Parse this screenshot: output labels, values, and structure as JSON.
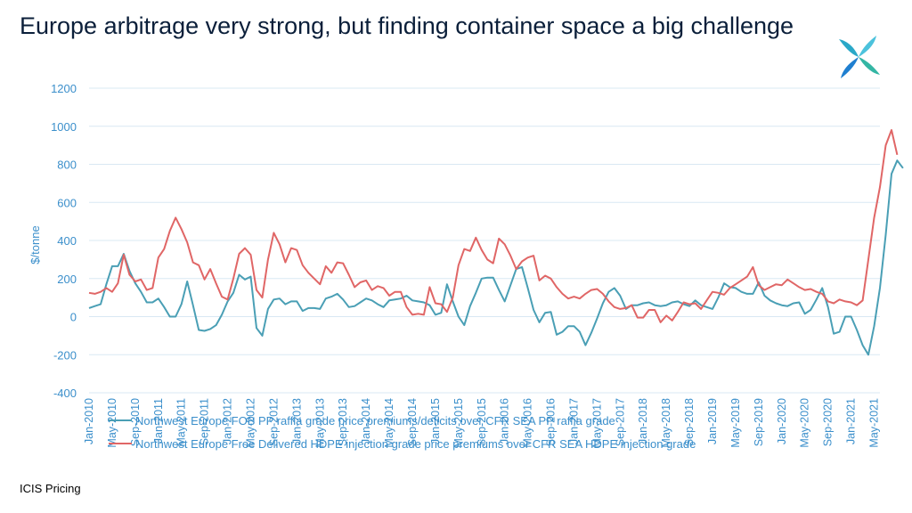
{
  "page": {
    "title": "Europe arbitrage very strong, but finding container space a big challenge",
    "source": "ICIS Pricing"
  },
  "colors": {
    "teal": "#4a9fb5",
    "red": "#e06666",
    "axis_text": "#3b8fcb",
    "grid": "#d9e8f3"
  },
  "logo_icon": "icis-pinwheel-logo",
  "chart_data": {
    "type": "line",
    "ylabel": "$/tonne",
    "ylim": [
      -400,
      1200
    ],
    "yticks": [
      -400,
      -200,
      0,
      200,
      400,
      600,
      800,
      1000,
      1200
    ],
    "grid": true,
    "legend_position": "bottom",
    "x_start": "Jan-2010",
    "x_count": 138,
    "x_tick_labels": [
      "Jan-2010",
      "May-2010",
      "Sep-2010",
      "Jan-2011",
      "May-2011",
      "Sep-2011",
      "Jan-2012",
      "May-2012",
      "Sep-2012",
      "Jan-2013",
      "May-2013",
      "Sep-2013",
      "Jan-2014",
      "May-2014",
      "Sep-2014",
      "Jan-2015",
      "May-2015",
      "Sep-2015",
      "Jan-2016",
      "May-2016",
      "Sep-2016",
      "Jan-2017",
      "May-2017",
      "Sep-2017",
      "Jan-2018",
      "May-2018",
      "Sep-2018",
      "Jan-2019",
      "May-2019",
      "Sep-2019",
      "Jan-2020",
      "May-2020",
      "Sep-2020",
      "Jan-2021",
      "May-2021"
    ],
    "series": [
      {
        "name": "Northwest Europe FOB PP raffia grade price premiums/deficits over CFR SEA PP raffia grade",
        "color": "#4a9fb5",
        "values": [
          45,
          55,
          65,
          170,
          265,
          265,
          330,
          240,
          175,
          130,
          75,
          75,
          95,
          50,
          0,
          0,
          65,
          185,
          60,
          -70,
          -75,
          -65,
          -45,
          10,
          80,
          125,
          220,
          195,
          210,
          -60,
          -100,
          40,
          90,
          95,
          65,
          80,
          80,
          30,
          45,
          45,
          40,
          95,
          105,
          120,
          90,
          50,
          55,
          75,
          95,
          85,
          65,
          50,
          85,
          90,
          95,
          110,
          85,
          80,
          75,
          60,
          10,
          20,
          170,
          80,
          0,
          -45,
          55,
          125,
          200,
          205,
          205,
          140,
          80,
          165,
          250,
          260,
          150,
          35,
          -30,
          20,
          25,
          -95,
          -80,
          -50,
          -50,
          -80,
          -150,
          -85,
          -10,
          70,
          130,
          150,
          110,
          40,
          60,
          60,
          70,
          75,
          60,
          55,
          60,
          75,
          80,
          65,
          55,
          85,
          60,
          50,
          40,
          100,
          175,
          155,
          150,
          130,
          120,
          120,
          180,
          110,
          85,
          70,
          60,
          55,
          70,
          75,
          15,
          35,
          90,
          150,
          50,
          -90,
          -80,
          0,
          0,
          -70,
          -150,
          -200,
          -50,
          150,
          430,
          750,
          820,
          780
        ]
      },
      {
        "name": "Northwest Europe Free Delivered HDPE injection grade price premiums over CFR SEA HDPE injection grade",
        "color": "#e06666",
        "values": [
          125,
          120,
          130,
          150,
          130,
          175,
          325,
          220,
          185,
          195,
          140,
          150,
          310,
          355,
          450,
          520,
          460,
          390,
          285,
          270,
          195,
          250,
          175,
          105,
          90,
          200,
          330,
          360,
          325,
          140,
          100,
          300,
          440,
          380,
          285,
          360,
          350,
          270,
          230,
          200,
          170,
          265,
          230,
          285,
          280,
          220,
          155,
          180,
          190,
          140,
          160,
          150,
          110,
          130,
          130,
          50,
          10,
          15,
          10,
          155,
          70,
          65,
          25,
          100,
          270,
          355,
          345,
          415,
          350,
          300,
          280,
          410,
          380,
          320,
          250,
          290,
          310,
          320,
          190,
          215,
          200,
          155,
          120,
          95,
          105,
          95,
          120,
          140,
          145,
          120,
          80,
          50,
          40,
          45,
          60,
          -5,
          -5,
          35,
          35,
          -30,
          5,
          -20,
          25,
          75,
          65,
          70,
          40,
          85,
          130,
          125,
          115,
          150,
          170,
          190,
          210,
          260,
          165,
          140,
          155,
          170,
          165,
          195,
          175,
          155,
          140,
          145,
          130,
          120,
          80,
          70,
          90,
          80,
          75,
          60,
          85,
          300,
          520,
          680,
          900,
          980,
          850
        ]
      }
    ]
  }
}
